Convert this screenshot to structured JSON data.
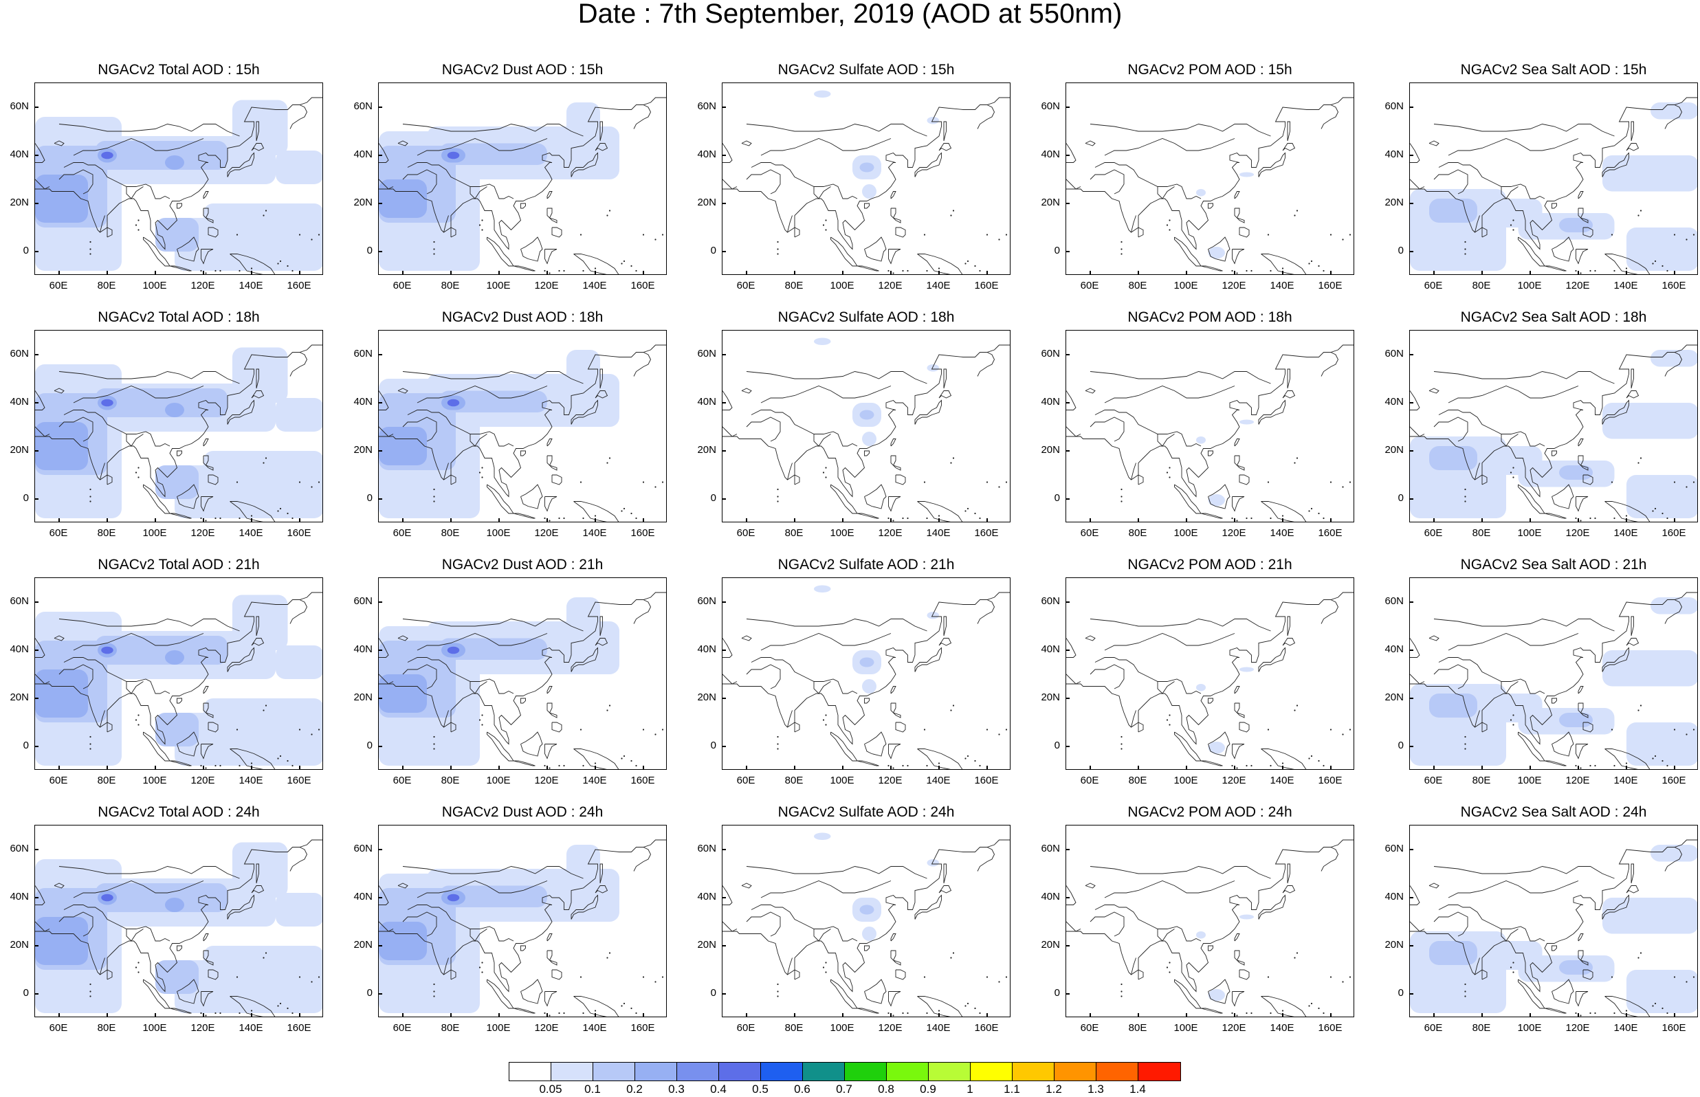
{
  "title": "Date : 7th September, 2019 (AOD at 550nm)",
  "lat_labels": [
    "60N",
    "40N",
    "20N",
    "0"
  ],
  "lon_labels": [
    "60E",
    "80E",
    "100E",
    "120E",
    "140E",
    "160E"
  ],
  "panels": [
    [
      "NGACv2 Total AOD : 15h",
      "NGACv2 Dust AOD : 15h",
      "NGACv2 Sulfate AOD : 15h",
      "NGACv2 POM AOD : 15h",
      "NGACv2 Sea Salt AOD : 15h"
    ],
    [
      "NGACv2 Total AOD : 18h",
      "NGACv2 Dust AOD : 18h",
      "NGACv2 Sulfate AOD : 18h",
      "NGACv2 POM AOD : 18h",
      "NGACv2 Sea Salt AOD : 18h"
    ],
    [
      "NGACv2 Total AOD : 21h",
      "NGACv2 Dust AOD : 21h",
      "NGACv2 Sulfate AOD : 21h",
      "NGACv2 POM AOD : 21h",
      "NGACv2 Sea Salt AOD : 21h"
    ],
    [
      "NGACv2 Total AOD : 24h",
      "NGACv2 Dust AOD : 24h",
      "NGACv2 Sulfate AOD : 24h",
      "NGACv2 POM AOD : 24h",
      "NGACv2 Sea Salt  AOD : 24h"
    ]
  ],
  "colorbar": {
    "labels": [
      "0.05",
      "0.1",
      "0.2",
      "0.3",
      "0.4",
      "0.5",
      "0.6",
      "0.7",
      "0.8",
      "0.9",
      "1",
      "1.1",
      "1.2",
      "1.3",
      "1.4"
    ],
    "colors": [
      "#ffffff",
      "#d6e1fb",
      "#b7c9f7",
      "#97b0f3",
      "#7890ee",
      "#5d6ee8",
      "#1e5ff0",
      "#10908a",
      "#1fd00c",
      "#79f80d",
      "#b8fc36",
      "#ffff00",
      "#ffc800",
      "#ff9400",
      "#ff6400",
      "#ff1a00"
    ]
  },
  "colors": {
    "shade_light": "#d6e1fb",
    "shade_mid": "#b7c9f7",
    "shade_high": "#97b0f3",
    "shade_peak": "#5d6ee8"
  }
}
